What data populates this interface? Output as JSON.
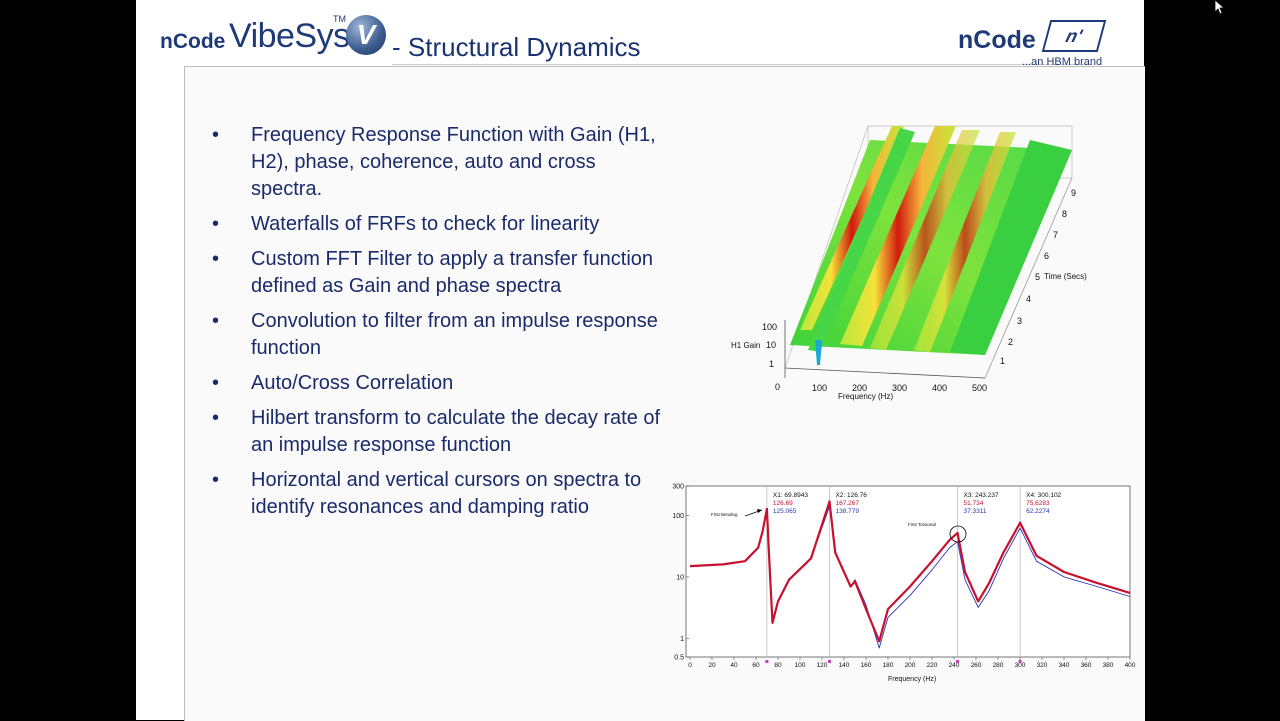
{
  "header": {
    "logo_ncode": "nCode",
    "logo_product": "VibeSys",
    "logo_tm": "TM",
    "logo_badge": "V",
    "title": "- Structural Dynamics",
    "brand_name": "nCode",
    "brand_badge": "n'",
    "brand_tagline": "...an HBM brand"
  },
  "bullet_marker": "•",
  "bullets": [
    "Frequency Response Function with Gain (H1, H2), phase, coherence, auto and cross spectra.",
    "Waterfalls of FRFs to check for linearity",
    "Custom FFT Filter to apply a transfer function defined as Gain and phase spectra",
    "Convolution to filter from an impulse response function",
    "Auto/Cross Correlation",
    "Hilbert transform to calculate the decay rate of an impulse response function",
    "Horizontal and vertical cursors on spectra to identify resonances and damping ratio"
  ],
  "waterfall": {
    "x_label": "Frequency (Hz)",
    "x_ticks": [
      "0",
      "100",
      "200",
      "300",
      "400",
      "500"
    ],
    "y_label": "H1 Gain",
    "y_ticks": [
      "100",
      "10",
      "1"
    ],
    "z_label": "Time (Secs)",
    "z_ticks": [
      "1",
      "2",
      "3",
      "4",
      "5",
      "6",
      "7",
      "8",
      "9"
    ]
  },
  "chart_data": {
    "type": "line",
    "xlabel": "Frequency (Hz)",
    "ylabel": "",
    "x_ticks": [
      "0",
      "20",
      "40",
      "60",
      "80",
      "100",
      "120",
      "140",
      "160",
      "180",
      "200",
      "220",
      "240",
      "260",
      "280",
      "300",
      "320",
      "340",
      "360",
      "380",
      "400"
    ],
    "y_ticks": [
      "300",
      "100",
      "10",
      "1",
      "0.5"
    ],
    "xlim": [
      0,
      400
    ],
    "ylim": [
      0.5,
      300
    ],
    "y_scale": "log",
    "series": [
      {
        "color": "#c8102e",
        "x": [
          0,
          30,
          50,
          62,
          66,
          69.9,
          72,
          75,
          80,
          90,
          110,
          126.8,
          132,
          140,
          146,
          150,
          160,
          172,
          180,
          200,
          220,
          236,
          243.2,
          250,
          262,
          272,
          285,
          300.1,
          315,
          340,
          370,
          400
        ],
        "values": [
          15,
          16,
          18,
          30,
          55,
          126,
          20,
          1.8,
          4,
          9,
          20,
          167,
          25,
          12,
          7,
          8.5,
          3,
          0.9,
          3,
          7,
          18,
          40,
          51.7,
          12,
          4,
          8,
          25,
          75.7,
          22,
          12,
          8,
          5.5
        ]
      },
      {
        "color": "#2a35b8",
        "x": [
          0,
          30,
          50,
          62,
          66,
          69.9,
          72,
          75,
          80,
          90,
          110,
          126.8,
          132,
          140,
          146,
          150,
          160,
          172,
          180,
          200,
          220,
          236,
          243.2,
          250,
          262,
          272,
          285,
          300.1,
          315,
          340,
          370,
          400
        ],
        "values": [
          15,
          16,
          18,
          30,
          55,
          125,
          20,
          1.8,
          4,
          9,
          20,
          139,
          25,
          12,
          7,
          9,
          3.5,
          0.7,
          2.2,
          5,
          13,
          30,
          37.3,
          9,
          3.2,
          6,
          20,
          62.2,
          18,
          10,
          7,
          4.8
        ]
      }
    ],
    "cursors": [
      {
        "x": 69.9,
        "label": "X1: 69.8943",
        "v1": "126.69",
        "v2": "125.065"
      },
      {
        "x": 126.8,
        "label": "X2: 126.76",
        "v1": "167.267",
        "v2": "138.779"
      },
      {
        "x": 243.2,
        "label": "X3: 243.237",
        "v1": "51.734",
        "v2": "37.3311"
      },
      {
        "x": 300.1,
        "label": "X4: 300.102",
        "v1": "75.6283",
        "v2": "62.2274"
      }
    ],
    "annotations": [
      "First Bending",
      "First Torsional"
    ],
    "grid": false
  }
}
